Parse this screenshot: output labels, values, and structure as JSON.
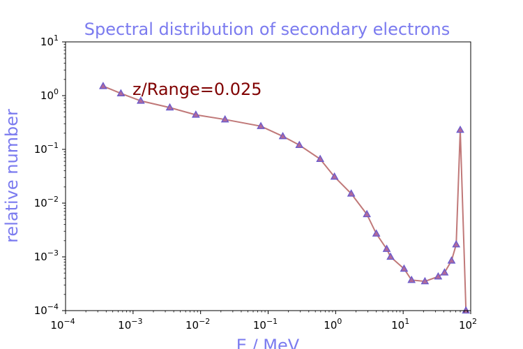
{
  "chart_data": {
    "type": "line",
    "title": "Spectral distribution of secondary electrons",
    "xlabel": "E / MeV",
    "ylabel": "relative number",
    "xscale": "log",
    "yscale": "log",
    "xlim": [
      0.0001,
      100
    ],
    "ylim": [
      0.0001,
      10
    ],
    "x_ticks": [
      {
        "base": "10",
        "exp": "−4",
        "value": 0.0001
      },
      {
        "base": "10",
        "exp": "−3",
        "value": 0.001
      },
      {
        "base": "10",
        "exp": "−2",
        "value": 0.01
      },
      {
        "base": "10",
        "exp": "−1",
        "value": 0.1
      },
      {
        "base": "10",
        "exp": "0",
        "value": 1
      },
      {
        "base": "10",
        "exp": "1",
        "value": 10
      },
      {
        "base": "10",
        "exp": "2",
        "value": 100
      }
    ],
    "y_ticks": [
      {
        "base": "10",
        "exp": "−4",
        "value": 0.0001
      },
      {
        "base": "10",
        "exp": "−3",
        "value": 0.001
      },
      {
        "base": "10",
        "exp": "−2",
        "value": 0.01
      },
      {
        "base": "10",
        "exp": "−1",
        "value": 0.1
      },
      {
        "base": "10",
        "exp": "0",
        "value": 1
      },
      {
        "base": "10",
        "exp": "1",
        "value": 10
      }
    ],
    "annotation": "z/Range=0.025",
    "grid": false,
    "series": [
      {
        "marker": "triangle",
        "line_color": "#c07878",
        "marker_edge_color": "#6a5acd",
        "marker_fill_color": "#b06a9a",
        "points": [
          {
            "x": 0.00036,
            "y": 1.5
          },
          {
            "x": 0.00066,
            "y": 1.1
          },
          {
            "x": 0.0013,
            "y": 0.8
          },
          {
            "x": 0.0035,
            "y": 0.6
          },
          {
            "x": 0.0085,
            "y": 0.44
          },
          {
            "x": 0.023,
            "y": 0.36
          },
          {
            "x": 0.078,
            "y": 0.27
          },
          {
            "x": 0.165,
            "y": 0.175
          },
          {
            "x": 0.29,
            "y": 0.12
          },
          {
            "x": 0.59,
            "y": 0.066
          },
          {
            "x": 0.96,
            "y": 0.031
          },
          {
            "x": 1.7,
            "y": 0.015
          },
          {
            "x": 2.9,
            "y": 0.0062
          },
          {
            "x": 4.0,
            "y": 0.0027
          },
          {
            "x": 5.7,
            "y": 0.0014
          },
          {
            "x": 6.5,
            "y": 0.001
          },
          {
            "x": 10.3,
            "y": 0.0006
          },
          {
            "x": 13.3,
            "y": 0.00037
          },
          {
            "x": 21,
            "y": 0.00035
          },
          {
            "x": 33,
            "y": 0.00043
          },
          {
            "x": 41,
            "y": 0.00051
          },
          {
            "x": 52,
            "y": 0.00085
          },
          {
            "x": 61,
            "y": 0.0017
          },
          {
            "x": 70,
            "y": 0.23
          },
          {
            "x": 85,
            "y": 0.0001
          }
        ]
      }
    ]
  },
  "colors": {
    "title": "#7b7bef",
    "axis_title": "#7b7bef",
    "annotation": "#800000",
    "axes": "#000000",
    "line": "#c07878",
    "marker_edge": "#6a5acd",
    "marker_fill": "#b06a9a"
  }
}
